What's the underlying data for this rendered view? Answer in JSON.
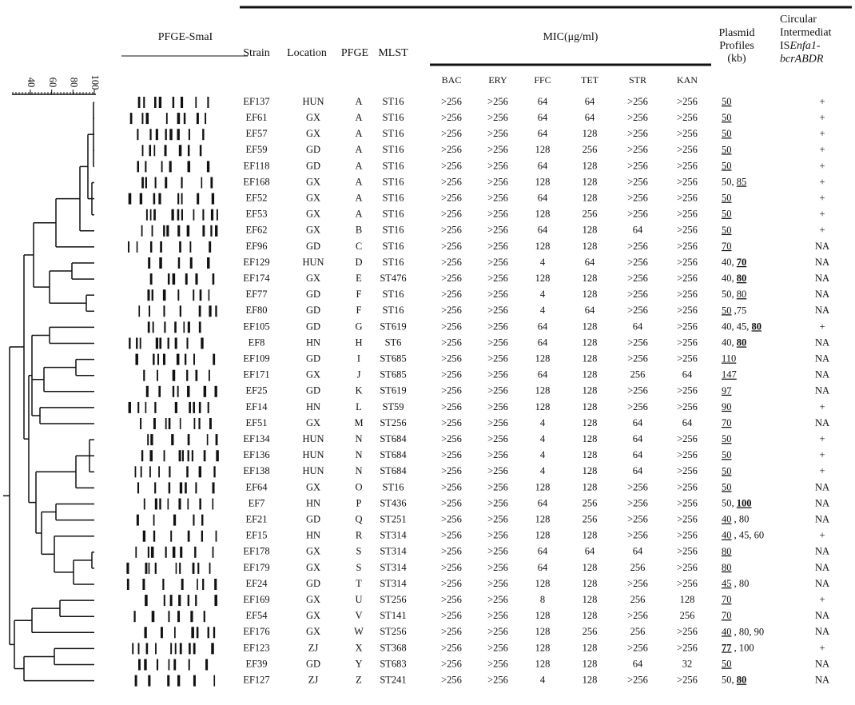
{
  "figure": {
    "pfge_title": "PFGE-SmaI",
    "dendrogram_scale": [
      40,
      60,
      80,
      100
    ],
    "header": {
      "strain": "Strain",
      "location": "Location",
      "pfge": "PFGE",
      "mlst": "MLST",
      "mic": "MIC(μg/ml)",
      "mic_columns": [
        "BAC",
        "ERY",
        "FFC",
        "TET",
        "STR",
        "KAN"
      ],
      "plasmid_lines": [
        "Plasmid",
        "Profiles",
        "(kb)"
      ],
      "ci_lines": [
        [
          {
            "t": "Circular"
          }
        ],
        [
          {
            "t": "Intermediat"
          }
        ],
        [
          {
            "t": "IS"
          },
          {
            "t": "Enfa1-",
            "i": true
          }
        ],
        [
          {
            "t": "bcrABDR",
            "i": true
          }
        ]
      ]
    },
    "rows": [
      [
        "EF137",
        "HUN",
        "A",
        "ST16",
        ">256",
        ">256",
        64,
        64,
        ">256",
        ">256",
        [
          {
            "t": "50",
            "u": true
          }
        ],
        "+"
      ],
      [
        "EF61",
        "GX",
        "A",
        "ST16",
        ">256",
        ">256",
        64,
        64,
        ">256",
        ">256",
        [
          {
            "t": "50",
            "u": true
          }
        ],
        "+"
      ],
      [
        "EF57",
        "GX",
        "A",
        "ST16",
        ">256",
        ">256",
        64,
        128,
        ">256",
        ">256",
        [
          {
            "t": "50",
            "u": true
          }
        ],
        "+"
      ],
      [
        "EF59",
        "GD",
        "A",
        "ST16",
        ">256",
        ">256",
        128,
        256,
        ">256",
        ">256",
        [
          {
            "t": "50",
            "u": true
          }
        ],
        "+"
      ],
      [
        "EF118",
        "GD",
        "A",
        "ST16",
        ">256",
        ">256",
        64,
        128,
        ">256",
        ">256",
        [
          {
            "t": "50",
            "u": true
          }
        ],
        "+"
      ],
      [
        "EF168",
        "GX",
        "A",
        "ST16",
        ">256",
        ">256",
        128,
        128,
        ">256",
        ">256",
        [
          {
            "t": "50, "
          },
          {
            "t": "85",
            "u": true
          }
        ],
        "+"
      ],
      [
        "EF52",
        "GX",
        "A",
        "ST16",
        ">256",
        ">256",
        64,
        128,
        ">256",
        ">256",
        [
          {
            "t": "50",
            "u": true
          }
        ],
        "+"
      ],
      [
        "EF53",
        "GX",
        "A",
        "ST16",
        ">256",
        ">256",
        128,
        256,
        ">256",
        ">256",
        [
          {
            "t": "50",
            "u": true
          }
        ],
        "+"
      ],
      [
        "EF62",
        "GX",
        "B",
        "ST16",
        ">256",
        ">256",
        64,
        128,
        64,
        ">256",
        [
          {
            "t": "50",
            "u": true
          }
        ],
        "+"
      ],
      [
        "EF96",
        "GD",
        "C",
        "ST16",
        ">256",
        ">256",
        128,
        128,
        ">256",
        ">256",
        [
          {
            "t": "70",
            "u": true
          }
        ],
        "NA"
      ],
      [
        "EF129",
        "HUN",
        "D",
        "ST16",
        ">256",
        ">256",
        4,
        64,
        ">256",
        ">256",
        [
          {
            "t": "40, "
          },
          {
            "t": "70",
            "u": true,
            "b": true
          }
        ],
        "NA"
      ],
      [
        "EF174",
        "GX",
        "E",
        "ST476",
        ">256",
        ">256",
        128,
        128,
        ">256",
        ">256",
        [
          {
            "t": "40, "
          },
          {
            "t": "80",
            "u": true,
            "b": true
          }
        ],
        "NA"
      ],
      [
        "EF77",
        "GD",
        "F",
        "ST16",
        ">256",
        ">256",
        4,
        128,
        ">256",
        ">256",
        [
          {
            "t": "50, "
          },
          {
            "t": "80",
            "u": true
          }
        ],
        "NA"
      ],
      [
        "EF80",
        "GD",
        "F",
        "ST16",
        ">256",
        ">256",
        4,
        64,
        ">256",
        ">256",
        [
          {
            "t": "50",
            "u": true
          },
          {
            "t": " ,75"
          }
        ],
        "NA"
      ],
      [
        "EF105",
        "GD",
        "G",
        "ST619",
        ">256",
        ">256",
        64,
        128,
        64,
        ">256",
        [
          {
            "t": "40, 45, "
          },
          {
            "t": "80",
            "u": true,
            "b": true
          }
        ],
        "+"
      ],
      [
        "EF8",
        "HN",
        "H",
        "ST6",
        ">256",
        ">256",
        64,
        128,
        ">256",
        ">256",
        [
          {
            "t": "40, "
          },
          {
            "t": "80",
            "u": true,
            "b": true
          }
        ],
        "NA"
      ],
      [
        "EF109",
        "GD",
        "I",
        "ST685",
        ">256",
        ">256",
        128,
        128,
        ">256",
        ">256",
        [
          {
            "t": "110",
            "u": true
          }
        ],
        "NA"
      ],
      [
        "EF171",
        "GX",
        "J",
        "ST685",
        ">256",
        ">256",
        64,
        128,
        256,
        64,
        [
          {
            "t": "147",
            "u": true
          }
        ],
        "NA"
      ],
      [
        "EF25",
        "GD",
        "K",
        "ST619",
        ">256",
        ">256",
        128,
        128,
        ">256",
        ">256",
        [
          {
            "t": "97",
            "u": true
          }
        ],
        "NA"
      ],
      [
        "EF14",
        "HN",
        "L",
        "ST59",
        ">256",
        ">256",
        128,
        128,
        ">256",
        ">256",
        [
          {
            "t": "90",
            "u": true
          }
        ],
        "+"
      ],
      [
        "EF51",
        "GX",
        "M",
        "ST256",
        ">256",
        ">256",
        4,
        128,
        64,
        64,
        [
          {
            "t": "70",
            "u": true
          }
        ],
        "NA"
      ],
      [
        "EF134",
        "HUN",
        "N",
        "ST684",
        ">256",
        ">256",
        4,
        128,
        64,
        ">256",
        [
          {
            "t": "50",
            "u": true
          }
        ],
        "+"
      ],
      [
        "EF136",
        "HUN",
        "N",
        "ST684",
        ">256",
        ">256",
        4,
        128,
        64,
        ">256",
        [
          {
            "t": "50",
            "u": true
          }
        ],
        "+"
      ],
      [
        "EF138",
        "HUN",
        "N",
        "ST684",
        ">256",
        ">256",
        4,
        128,
        64,
        ">256",
        [
          {
            "t": "50",
            "u": true
          }
        ],
        "+"
      ],
      [
        "EF64",
        "GX",
        "O",
        "ST16",
        ">256",
        ">256",
        128,
        128,
        ">256",
        ">256",
        [
          {
            "t": "50",
            "u": true
          }
        ],
        "NA"
      ],
      [
        "EF7",
        "HN",
        "P",
        "ST436",
        ">256",
        ">256",
        64,
        256,
        ">256",
        ">256",
        [
          {
            "t": "50, "
          },
          {
            "t": "100",
            "u": true,
            "b": true
          }
        ],
        "NA"
      ],
      [
        "EF21",
        "GD",
        "Q",
        "ST251",
        ">256",
        ">256",
        128,
        256,
        ">256",
        ">256",
        [
          {
            "t": "40",
            "u": true
          },
          {
            "t": " , 80"
          }
        ],
        "NA"
      ],
      [
        "EF15",
        "HN",
        "R",
        "ST314",
        ">256",
        ">256",
        128,
        128,
        ">256",
        ">256",
        [
          {
            "t": "40",
            "u": true
          },
          {
            "t": " , 45, 60"
          }
        ],
        "+"
      ],
      [
        "EF178",
        "GX",
        "S",
        "ST314",
        ">256",
        ">256",
        64,
        64,
        64,
        ">256",
        [
          {
            "t": "80",
            "u": true
          }
        ],
        "NA"
      ],
      [
        "EF179",
        "GX",
        "S",
        "ST314",
        ">256",
        ">256",
        64,
        128,
        256,
        ">256",
        [
          {
            "t": "80",
            "u": true
          }
        ],
        "NA"
      ],
      [
        "EF24",
        "GD",
        "T",
        "ST314",
        ">256",
        ">256",
        128,
        128,
        ">256",
        ">256",
        [
          {
            "t": "45",
            "u": true
          },
          {
            "t": " , 80"
          }
        ],
        "NA"
      ],
      [
        "EF169",
        "GX",
        "U",
        "ST256",
        ">256",
        ">256",
        8,
        128,
        256,
        128,
        [
          {
            "t": "70",
            "u": true
          }
        ],
        "+"
      ],
      [
        "EF54",
        "GX",
        "V",
        "ST141",
        ">256",
        ">256",
        128,
        128,
        ">256",
        256,
        [
          {
            "t": "70",
            "u": true
          }
        ],
        "NA"
      ],
      [
        "EF176",
        "GX",
        "W",
        "ST256",
        ">256",
        ">256",
        128,
        256,
        256,
        ">256",
        [
          {
            "t": "40",
            "u": true
          },
          {
            "t": " , 80, 90"
          }
        ],
        "NA"
      ],
      [
        "EF123",
        "ZJ",
        "X",
        "ST368",
        ">256",
        ">256",
        128,
        128,
        ">256",
        ">256",
        [
          {
            "t": "77",
            "u": true,
            "b": true
          },
          {
            "t": " , 100"
          }
        ],
        "+"
      ],
      [
        "EF39",
        "GD",
        "Y",
        "ST683",
        ">256",
        ">256",
        128,
        128,
        64,
        32,
        [
          {
            "t": "50",
            "u": true
          }
        ],
        "NA"
      ],
      [
        "EF127",
        "ZJ",
        "Z",
        "ST241",
        ">256",
        ">256",
        4,
        128,
        ">256",
        ">256",
        [
          {
            "t": "50, "
          },
          {
            "t": "80",
            "u": true,
            "b": true
          }
        ],
        "NA"
      ]
    ]
  }
}
